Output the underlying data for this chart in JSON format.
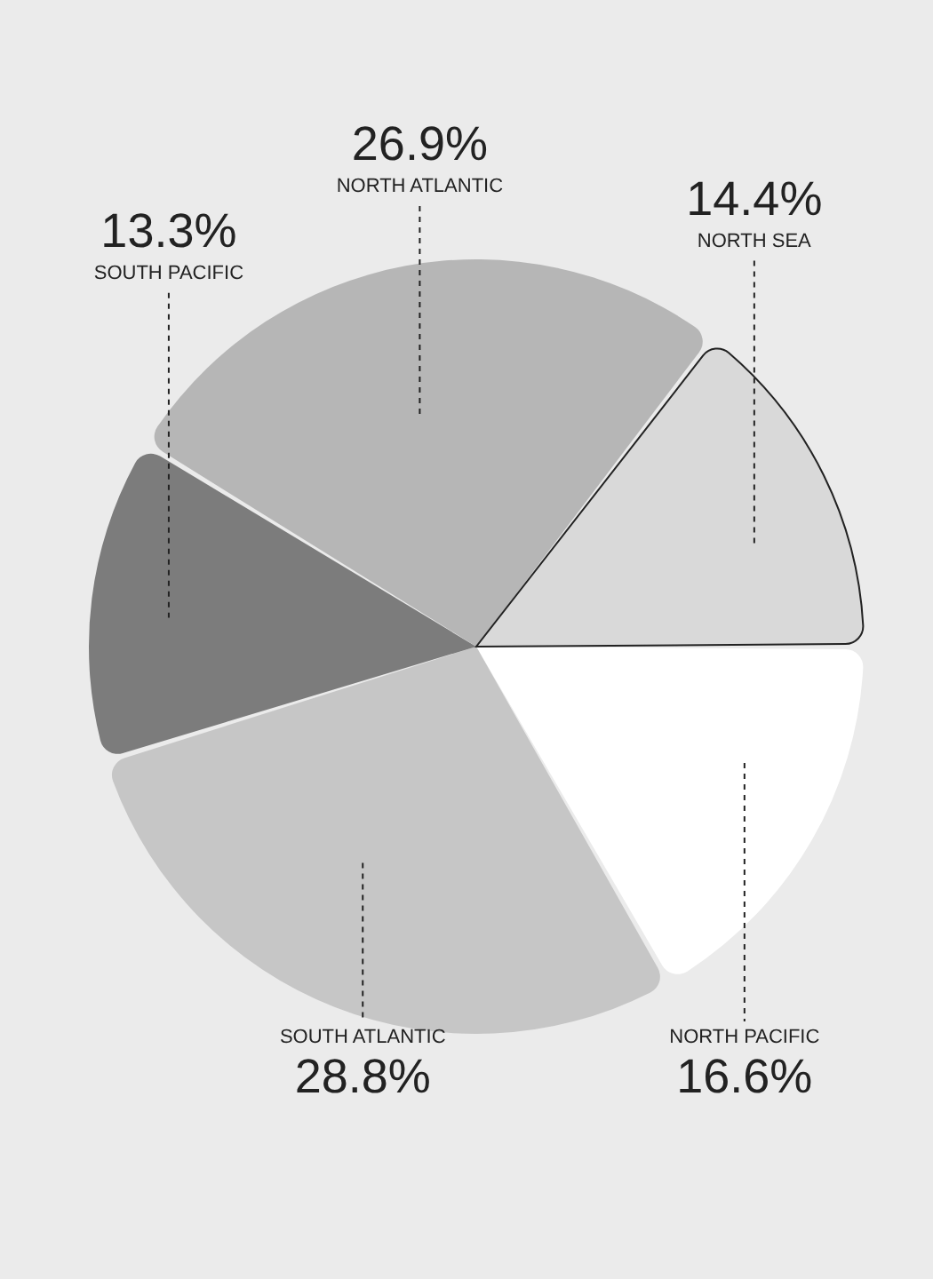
{
  "chart_data": {
    "type": "pie",
    "categories": [
      "NORTH PACIFIC",
      "SOUTH ATLANTIC",
      "SOUTH PACIFIC",
      "NORTH ATLANTIC",
      "NORTH SEA"
    ],
    "values": [
      16.6,
      28.8,
      13.3,
      26.9,
      14.4
    ],
    "colors": [
      "#ffffff",
      "#c6c6c6",
      "#7c7c7c",
      "#b6b6b6",
      "#d9d9d9"
    ],
    "value_labels": [
      "16.6%",
      "28.8%",
      "13.3%",
      "26.9%",
      "14.4%"
    ]
  }
}
